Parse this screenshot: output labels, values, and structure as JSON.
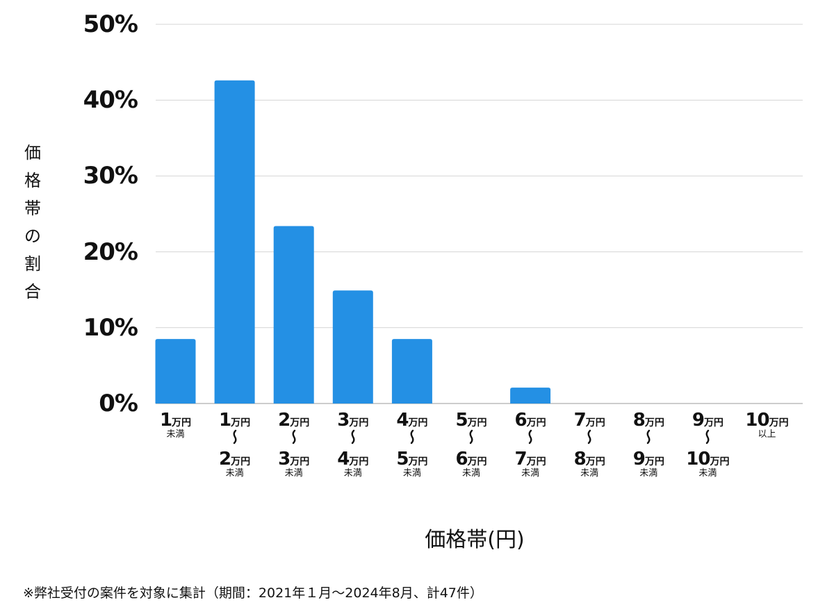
{
  "chart_data": {
    "type": "bar",
    "title": "",
    "ylabel": "価格帯の割合",
    "xlabel": "価格帯(円)",
    "ylim": [
      0,
      50
    ],
    "yticks": [
      "0%",
      "10%",
      "20%",
      "30%",
      "40%",
      "50%"
    ],
    "ytick_values": [
      0,
      10,
      20,
      30,
      40,
      50
    ],
    "grid": true,
    "bar_color": "#2490E4",
    "categories": [
      {
        "from": "1",
        "to": null,
        "unit": "万円",
        "suffix": "未満"
      },
      {
        "from": "1",
        "to": "2",
        "unit": "万円",
        "suffix": "未満"
      },
      {
        "from": "2",
        "to": "3",
        "unit": "万円",
        "suffix": "未満"
      },
      {
        "from": "3",
        "to": "4",
        "unit": "万円",
        "suffix": "未満"
      },
      {
        "from": "4",
        "to": "5",
        "unit": "万円",
        "suffix": "未満"
      },
      {
        "from": "5",
        "to": "6",
        "unit": "万円",
        "suffix": "未満"
      },
      {
        "from": "6",
        "to": "7",
        "unit": "万円",
        "suffix": "未満"
      },
      {
        "from": "7",
        "to": "8",
        "unit": "万円",
        "suffix": "未満"
      },
      {
        "from": "8",
        "to": "9",
        "unit": "万円",
        "suffix": "未満"
      },
      {
        "from": "9",
        "to": "10",
        "unit": "万円",
        "suffix": "未満"
      },
      {
        "from": "10",
        "to": null,
        "unit": "万円",
        "suffix": "以上"
      }
    ],
    "range_mark": "〜",
    "values": [
      8.5,
      42.6,
      23.4,
      14.9,
      8.5,
      0,
      2.1,
      0,
      0,
      0,
      0
    ]
  },
  "footnote": "※弊社受付の案件を対象に集計（期間：2021年１月～2024年8月、計47件）"
}
